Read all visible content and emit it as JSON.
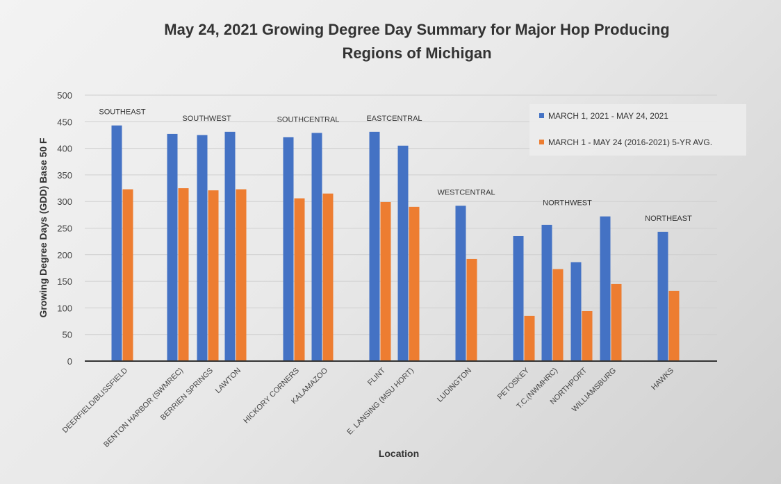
{
  "chart_data": {
    "type": "bar",
    "title_lines": [
      "May 24, 2021 Growing Degree Day Summary for Major Hop Producing",
      "Regions of Michigan"
    ],
    "xlabel": "Location",
    "ylabel": "Growing Degree Days (GDD) Base 50 F",
    "ylim": [
      0,
      500
    ],
    "yticks": [
      0,
      50,
      100,
      150,
      200,
      250,
      300,
      350,
      400,
      450,
      500
    ],
    "grid": true,
    "legend_position": "top-right",
    "categories": [
      "DEERFIELD/BLISSFIELD",
      "BENTON HARBOR (SWMREC)",
      "BERRIEN SPRINGS",
      "LAWTON",
      "HICKORY CORNERS",
      "KALAMAZOO",
      "FLINT",
      "E. LANSING (MSU HORT)",
      "LUDINGTON",
      "PETOSKEY",
      "T.C.(NWMHRC)",
      "NORTHPORT",
      "WILLIAMSBURG",
      "HAWKS"
    ],
    "series": [
      {
        "name": "MARCH 1, 2021 - MAY 24, 2021",
        "color": "#4472C4",
        "values": [
          443,
          427,
          425,
          431,
          421,
          429,
          431,
          405,
          292,
          235,
          256,
          186,
          272,
          243
        ]
      },
      {
        "name": "MARCH 1 - MAY 24 (2016-2021) 5-YR AVG.",
        "color": "#ED7D31",
        "values": [
          323,
          325,
          321,
          323,
          306,
          315,
          299,
          290,
          192,
          85,
          173,
          94,
          145,
          132
        ]
      }
    ],
    "regions": [
      {
        "label": "SOUTHEAST",
        "categories": [
          0
        ]
      },
      {
        "label": "SOUTHWEST",
        "categories": [
          1,
          2,
          3
        ]
      },
      {
        "label": "SOUTHCENTRAL",
        "categories": [
          4,
          5
        ]
      },
      {
        "label": "EASTCENTRAL",
        "categories": [
          6,
          7
        ]
      },
      {
        "label": "WESTCENTRAL",
        "categories": [
          8
        ]
      },
      {
        "label": "NORTHWEST",
        "categories": [
          9,
          10,
          11,
          12
        ]
      },
      {
        "label": "NORTHEAST",
        "categories": [
          13
        ]
      }
    ]
  }
}
